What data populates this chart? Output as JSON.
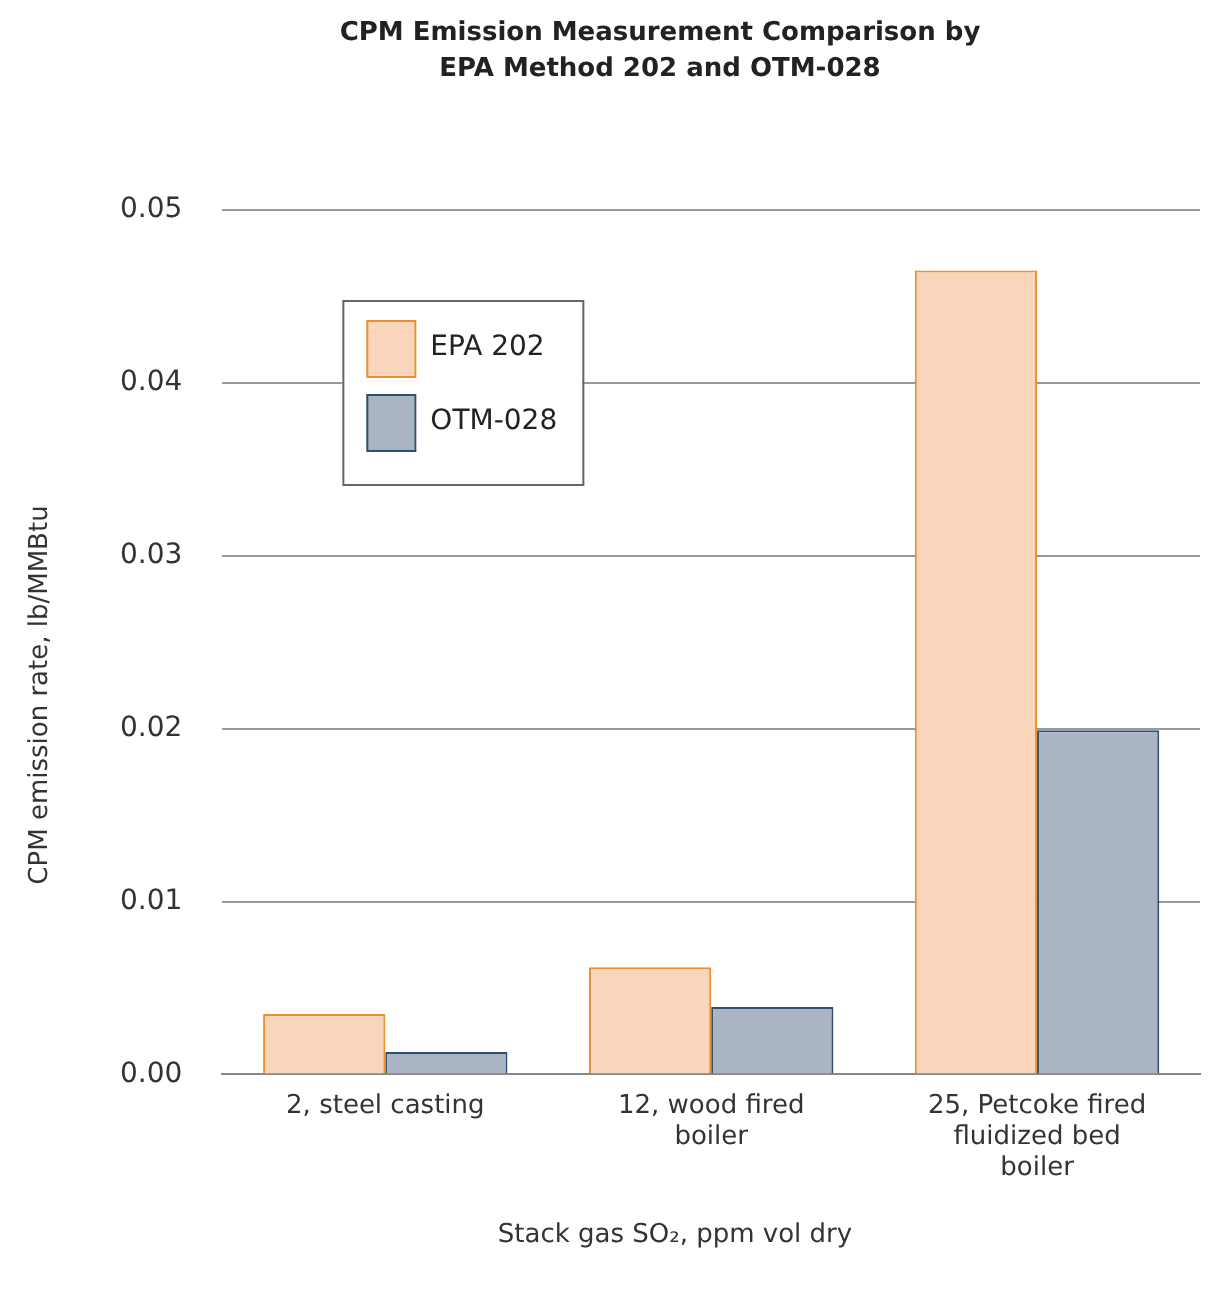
{
  "chart_data": {
    "type": "bar",
    "title": "CPM Emission Measurement Comparison by EPA Method 202 and OTM-028",
    "xlabel": "Stack gas SO₂, ppm vol dry",
    "ylabel": "CPM emission rate, lb/MMBtu",
    "categories": [
      "2, steel casting",
      "12, wood fired boiler",
      "25, Petcoke fired fluidized bed boiler"
    ],
    "series": [
      {
        "name": "EPA 202",
        "color": "#f9d6bb",
        "values": [
          0.0035,
          0.0062,
          0.0465
        ]
      },
      {
        "name": "OTM-028",
        "color": "#aab4c3",
        "values": [
          0.0013,
          0.0039,
          0.0199
        ]
      }
    ],
    "ylim": [
      0,
      0.05
    ],
    "yticks": [
      {
        "value": 0,
        "label": "0.00"
      },
      0.01,
      0.02,
      0.03,
      0.04,
      0.05
    ],
    "grid": "y",
    "legend": "top left"
  }
}
